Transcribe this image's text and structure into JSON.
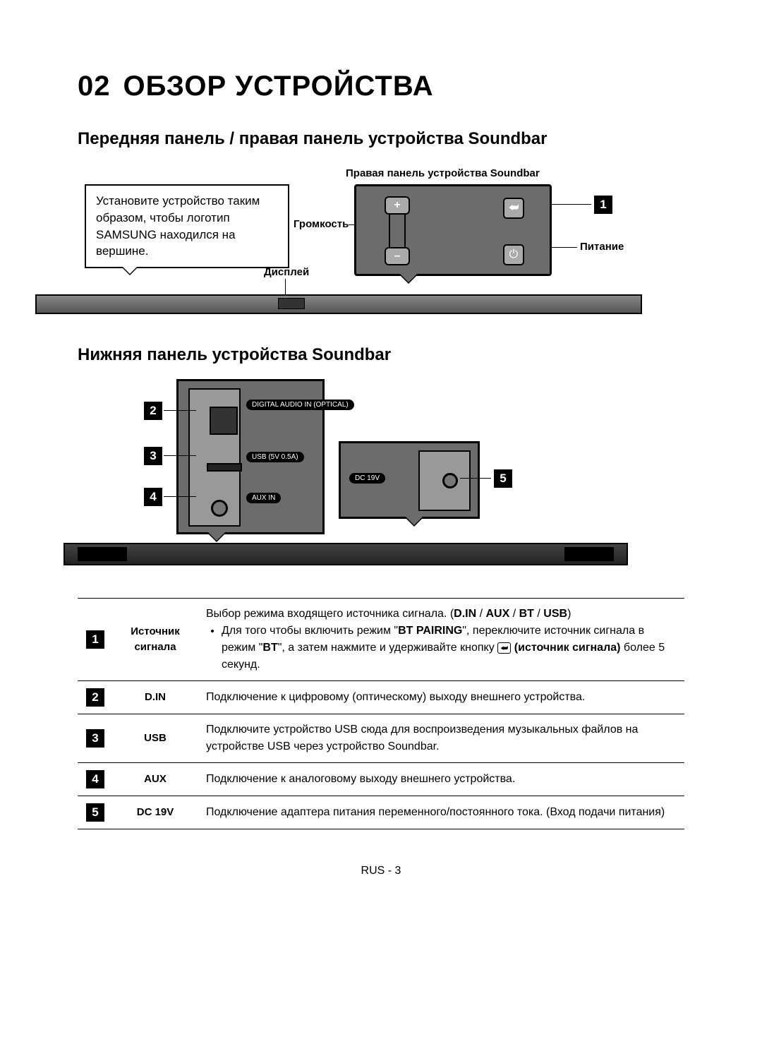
{
  "chapter": {
    "number": "02",
    "title": "ОБЗОР УСТРОЙСТВА"
  },
  "section_front": "Передняя панель / правая панель устройства Soundbar",
  "section_bottom": "Нижняя панель устройства Soundbar",
  "diagram1": {
    "install_note": "Установите устройство таким образом, чтобы логотип SAMSUNG находился на вершине.",
    "right_panel_label": "Правая панель устройства Soundbar",
    "volume_label": "Громкость",
    "display_label": "Дисплей",
    "power_label": "Питание",
    "badge1": "1",
    "vol_plus": "+",
    "vol_minus": "–",
    "src_glyph": "⮨",
    "pwr_glyph": "⏻"
  },
  "diagram2": {
    "ports": {
      "optical": "DIGITAL AUDIO IN (OPTICAL)",
      "usb": "USB (5V 0.5A)",
      "aux": "AUX IN",
      "dc": "DC 19V"
    },
    "badges": {
      "n2": "2",
      "n3": "3",
      "n4": "4",
      "n5": "5"
    }
  },
  "table": {
    "rows": [
      {
        "num": "1",
        "label": "Источник сигнала",
        "line1_a": "Выбор режима входящего источника сигнала. (",
        "line1_b": "D.IN",
        "line1_s1": " / ",
        "line1_c": "AUX",
        "line1_s2": " / ",
        "line1_d": "BT",
        "line1_s3": " / ",
        "line1_e": "USB",
        "line1_f": ")",
        "bullet_a": "Для того чтобы включить режим \"",
        "bullet_b": "BT PAIRING",
        "bullet_c": "\", переключите источник сигнала в режим \"",
        "bullet_d": "BT",
        "bullet_e": "\", а затем нажмите и удерживайте кнопку ",
        "bullet_icon": "⮨",
        "bullet_f": " (источник сигнала)",
        "bullet_g": " более 5 секунд."
      },
      {
        "num": "2",
        "label": "D.IN",
        "desc": "Подключение к цифровому (оптическому) выходу внешнего устройства."
      },
      {
        "num": "3",
        "label": "USB",
        "desc": "Подключите устройство USB сюда для воспроизведения музыкальных файлов на устройстве USB через устройство Soundbar."
      },
      {
        "num": "4",
        "label": "AUX",
        "desc": "Подключение к аналоговому выходу внешнего устройства."
      },
      {
        "num": "5",
        "label": "DC 19V",
        "desc": "Подключение адаптера питания переменного/постоянного тока. (Вход подачи питания)"
      }
    ]
  },
  "footer": "RUS - 3"
}
